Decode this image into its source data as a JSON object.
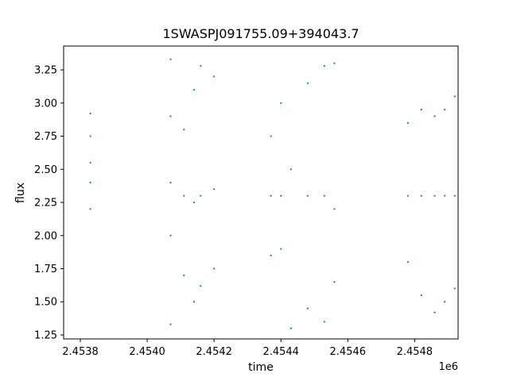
{
  "chart_data": {
    "type": "scatter",
    "title": "1SWASPJ091755.09+394043.7",
    "xlabel": "time",
    "ylabel": "flux",
    "x_offset_label": "1e6",
    "xlim": [
      2.45375,
      2.45493
    ],
    "ylim": [
      1.22,
      3.43
    ],
    "x_ticks": [
      2.4538,
      2.454,
      2.4542,
      2.4544,
      2.4546,
      2.4548
    ],
    "x_tick_labels": [
      "2.4538",
      "2.4540",
      "2.4542",
      "2.4544",
      "2.4546",
      "2.4548"
    ],
    "y_ticks": [
      1.25,
      1.5,
      1.75,
      2.0,
      2.25,
      2.5,
      2.75,
      3.0,
      3.25
    ],
    "y_tick_labels": [
      "1.25",
      "1.50",
      "1.75",
      "2.00",
      "2.25",
      "2.50",
      "2.75",
      "3.00",
      "3.25"
    ],
    "grid": false,
    "marker_color": "#1f77b4",
    "series": [
      {
        "values": [
          {
            "x": 2.45383,
            "y": 2.92
          },
          {
            "x": 2.45383,
            "y": 2.75
          },
          {
            "x": 2.45383,
            "y": 2.55
          },
          {
            "x": 2.45383,
            "y": 2.4
          },
          {
            "x": 2.45383,
            "y": 2.2
          },
          {
            "x": 2.45407,
            "y": 3.33
          },
          {
            "x": 2.45407,
            "y": 2.9
          },
          {
            "x": 2.45407,
            "y": 2.4
          },
          {
            "x": 2.45407,
            "y": 2.0
          },
          {
            "x": 2.45407,
            "y": 1.33
          },
          {
            "x": 2.45411,
            "y": 2.8
          },
          {
            "x": 2.45411,
            "y": 2.3
          },
          {
            "x": 2.45411,
            "y": 1.7
          },
          {
            "x": 2.45414,
            "y": 3.1
          },
          {
            "x": 2.45414,
            "y": 2.25
          },
          {
            "x": 2.45414,
            "y": 1.5
          },
          {
            "x": 2.45416,
            "y": 3.28
          },
          {
            "x": 2.45416,
            "y": 2.3
          },
          {
            "x": 2.45416,
            "y": 1.62
          },
          {
            "x": 2.4542,
            "y": 3.2
          },
          {
            "x": 2.4542,
            "y": 2.35
          },
          {
            "x": 2.4542,
            "y": 1.75
          },
          {
            "x": 2.45437,
            "y": 2.75
          },
          {
            "x": 2.45437,
            "y": 2.3
          },
          {
            "x": 2.45437,
            "y": 1.85
          },
          {
            "x": 2.4544,
            "y": 3.0
          },
          {
            "x": 2.4544,
            "y": 2.3
          },
          {
            "x": 2.4544,
            "y": 1.9
          },
          {
            "x": 2.45443,
            "y": 2.5
          },
          {
            "x": 2.45443,
            "y": 1.3
          },
          {
            "x": 2.45448,
            "y": 3.15
          },
          {
            "x": 2.45448,
            "y": 2.3
          },
          {
            "x": 2.45448,
            "y": 1.45
          },
          {
            "x": 2.45453,
            "y": 3.28
          },
          {
            "x": 2.45453,
            "y": 2.3
          },
          {
            "x": 2.45453,
            "y": 1.35
          },
          {
            "x": 2.45456,
            "y": 3.3
          },
          {
            "x": 2.45456,
            "y": 2.2
          },
          {
            "x": 2.45456,
            "y": 1.65
          },
          {
            "x": 2.45478,
            "y": 2.85
          },
          {
            "x": 2.45478,
            "y": 2.3
          },
          {
            "x": 2.45478,
            "y": 1.8
          },
          {
            "x": 2.45482,
            "y": 2.95
          },
          {
            "x": 2.45482,
            "y": 2.3
          },
          {
            "x": 2.45482,
            "y": 1.55
          },
          {
            "x": 2.45486,
            "y": 2.9
          },
          {
            "x": 2.45486,
            "y": 2.3
          },
          {
            "x": 2.45486,
            "y": 1.42
          },
          {
            "x": 2.45489,
            "y": 2.95
          },
          {
            "x": 2.45489,
            "y": 2.3
          },
          {
            "x": 2.45489,
            "y": 1.5
          },
          {
            "x": 2.45492,
            "y": 3.05
          },
          {
            "x": 2.45492,
            "y": 2.3
          },
          {
            "x": 2.45492,
            "y": 1.6
          }
        ]
      }
    ]
  }
}
